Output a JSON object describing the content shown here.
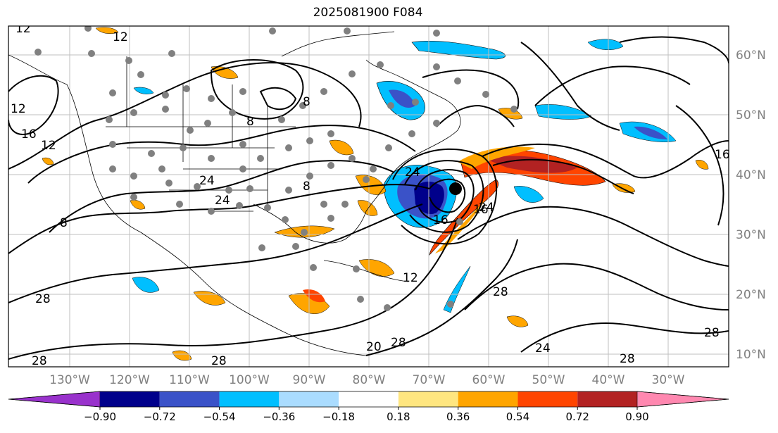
{
  "title": "2025081900 F084",
  "lat_labels": [
    "60°N",
    "50°N",
    "40°N",
    "30°N",
    "20°N",
    "10°N"
  ],
  "lon_labels": [
    "130°W",
    "120°W",
    "110°W",
    "100°W",
    "90°W",
    "80°W",
    "70°W",
    "60°W",
    "50°W",
    "40°W",
    "30°W"
  ],
  "contour_labels": [
    "12",
    "12",
    "16",
    "12",
    "8",
    "8",
    "24",
    "24",
    "8",
    "8",
    "24",
    "16",
    "12",
    "24",
    "16",
    "28",
    "28",
    "28",
    "28",
    "20",
    "28",
    "24",
    "28",
    "28",
    "16",
    "12"
  ],
  "colorbar": {
    "ticks": [
      "−0.90",
      "−0.72",
      "−0.54",
      "−0.36",
      "−0.18",
      "0.18",
      "0.36",
      "0.54",
      "0.72",
      "0.90"
    ],
    "colors": [
      "#9932cc",
      "#00008b",
      "#3a52c8",
      "#00bfff",
      "#aadcff",
      "#ffffff",
      "#ffe680",
      "#ffa500",
      "#ff4500",
      "#b22222",
      "#ff88b0"
    ]
  }
}
